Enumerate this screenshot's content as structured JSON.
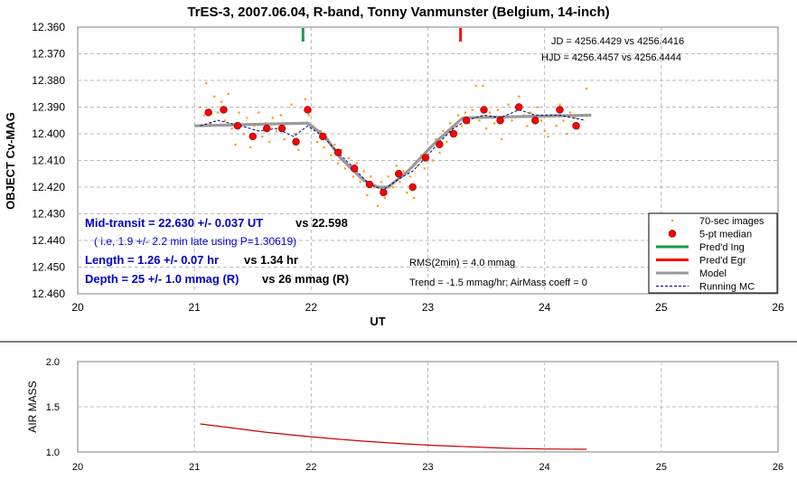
{
  "colors": {
    "raw_points": "#ff9900",
    "median_points": "#ff0000",
    "median_outline": "#990000",
    "ingress": "#1a9a50",
    "egress": "#ff0000",
    "model": "#999999",
    "running_mc": "#000080",
    "airmass_line": "#cc0000",
    "grid": "#b8b8b8",
    "annotation_blue": "#0000cc"
  },
  "chart_data": [
    {
      "type": "scatter",
      "title": "TrES-3, 2007.06.04, R-band, Tonny Vanmunster (Belgium, 14-inch)",
      "xlabel": "UT",
      "ylabel": "OBJECT Cv-MAG",
      "xlim": [
        20,
        26
      ],
      "ylim": [
        12.36,
        12.46
      ],
      "y_inverted": true,
      "grid": true,
      "x_ticks": [
        "20",
        "21",
        "22",
        "23",
        "24",
        "25",
        "26"
      ],
      "y_ticks": [
        "12.360",
        "12.370",
        "12.380",
        "12.390",
        "12.400",
        "12.410",
        "12.420",
        "12.430",
        "12.440",
        "12.450",
        "12.460"
      ],
      "legend_position": "bottom-right",
      "legend": [
        {
          "label": "70-sec images",
          "kind": "raw"
        },
        {
          "label": "5-pt median",
          "kind": "median"
        },
        {
          "label": "Pred'd Ing",
          "kind": "ingress"
        },
        {
          "label": "Pred'd Egr",
          "kind": "egress"
        },
        {
          "label": "Model",
          "kind": "model"
        },
        {
          "label": "Running MC",
          "kind": "running"
        }
      ],
      "annotations": {
        "jd": "JD = 4256.4429 vs 4256.4416",
        "hjd": "HJD = 4256.4457 vs 4256.4444",
        "mid_transit": "Mid-transit = 22.630 +/- 0.037 UT",
        "mid_transit_vs": "vs 22.598",
        "late_note": "( i.e, 1.9 +/- 2.2 min late using P=1.30619)",
        "length": "Length = 1.26 +/- 0.07 hr",
        "length_vs": "vs 1.34 hr",
        "depth": "Depth = 25 +/- 1.0 mmag (R)",
        "depth_vs": "vs 26  mmag (R)",
        "rms": "RMS(2min) = 4.0 mmag",
        "trend": "Trend = -1.5 mmag/hr; AirMass coeff = 0"
      },
      "predicted_ingress": 21.93,
      "predicted_egress": 23.28,
      "median_points": [
        {
          "x": 21.12,
          "y": 12.392
        },
        {
          "x": 21.25,
          "y": 12.391
        },
        {
          "x": 21.37,
          "y": 12.397
        },
        {
          "x": 21.5,
          "y": 12.401
        },
        {
          "x": 21.62,
          "y": 12.398
        },
        {
          "x": 21.75,
          "y": 12.398
        },
        {
          "x": 21.87,
          "y": 12.403
        },
        {
          "x": 21.97,
          "y": 12.391
        },
        {
          "x": 22.1,
          "y": 12.401
        },
        {
          "x": 22.23,
          "y": 12.407
        },
        {
          "x": 22.37,
          "y": 12.413
        },
        {
          "x": 22.5,
          "y": 12.419
        },
        {
          "x": 22.62,
          "y": 12.422
        },
        {
          "x": 22.75,
          "y": 12.415
        },
        {
          "x": 22.87,
          "y": 12.42
        },
        {
          "x": 22.98,
          "y": 12.409
        },
        {
          "x": 23.1,
          "y": 12.404
        },
        {
          "x": 23.22,
          "y": 12.4
        },
        {
          "x": 23.33,
          "y": 12.395
        },
        {
          "x": 23.48,
          "y": 12.391
        },
        {
          "x": 23.62,
          "y": 12.395
        },
        {
          "x": 23.78,
          "y": 12.39
        },
        {
          "x": 23.92,
          "y": 12.395
        },
        {
          "x": 24.13,
          "y": 12.391
        },
        {
          "x": 24.27,
          "y": 12.397
        }
      ],
      "raw_points": [
        {
          "x": 21.05,
          "y": 12.39
        },
        {
          "x": 21.08,
          "y": 12.393
        },
        {
          "x": 21.1,
          "y": 12.381
        },
        {
          "x": 21.14,
          "y": 12.396
        },
        {
          "x": 21.17,
          "y": 12.386
        },
        {
          "x": 21.2,
          "y": 12.392
        },
        {
          "x": 21.23,
          "y": 12.388
        },
        {
          "x": 21.26,
          "y": 12.395
        },
        {
          "x": 21.29,
          "y": 12.385
        },
        {
          "x": 21.32,
          "y": 12.398
        },
        {
          "x": 21.35,
          "y": 12.404
        },
        {
          "x": 21.38,
          "y": 12.392
        },
        {
          "x": 21.42,
          "y": 12.4
        },
        {
          "x": 21.45,
          "y": 12.394
        },
        {
          "x": 21.48,
          "y": 12.405
        },
        {
          "x": 21.51,
          "y": 12.397
        },
        {
          "x": 21.55,
          "y": 12.392
        },
        {
          "x": 21.58,
          "y": 12.401
        },
        {
          "x": 21.61,
          "y": 12.396
        },
        {
          "x": 21.64,
          "y": 12.403
        },
        {
          "x": 21.67,
          "y": 12.394
        },
        {
          "x": 21.7,
          "y": 12.399
        },
        {
          "x": 21.74,
          "y": 12.393
        },
        {
          "x": 21.77,
          "y": 12.402
        },
        {
          "x": 21.8,
          "y": 12.396
        },
        {
          "x": 21.83,
          "y": 12.389
        },
        {
          "x": 21.86,
          "y": 12.4
        },
        {
          "x": 21.89,
          "y": 12.406
        },
        {
          "x": 21.92,
          "y": 12.396
        },
        {
          "x": 21.95,
          "y": 12.387
        },
        {
          "x": 21.98,
          "y": 12.393
        },
        {
          "x": 22.01,
          "y": 12.397
        },
        {
          "x": 22.05,
          "y": 12.403
        },
        {
          "x": 22.08,
          "y": 12.399
        },
        {
          "x": 22.11,
          "y": 12.405
        },
        {
          "x": 22.14,
          "y": 12.402
        },
        {
          "x": 22.17,
          "y": 12.408
        },
        {
          "x": 22.2,
          "y": 12.404
        },
        {
          "x": 22.23,
          "y": 12.411
        },
        {
          "x": 22.26,
          "y": 12.406
        },
        {
          "x": 22.29,
          "y": 12.413
        },
        {
          "x": 22.32,
          "y": 12.409
        },
        {
          "x": 22.36,
          "y": 12.416
        },
        {
          "x": 22.39,
          "y": 12.411
        },
        {
          "x": 22.42,
          "y": 12.418
        },
        {
          "x": 22.45,
          "y": 12.414
        },
        {
          "x": 22.48,
          "y": 12.423
        },
        {
          "x": 22.51,
          "y": 12.416
        },
        {
          "x": 22.54,
          "y": 12.42
        },
        {
          "x": 22.57,
          "y": 12.427
        },
        {
          "x": 22.6,
          "y": 12.418
        },
        {
          "x": 22.63,
          "y": 12.424
        },
        {
          "x": 22.66,
          "y": 12.416
        },
        {
          "x": 22.7,
          "y": 12.42
        },
        {
          "x": 22.73,
          "y": 12.412
        },
        {
          "x": 22.76,
          "y": 12.418
        },
        {
          "x": 22.79,
          "y": 12.414
        },
        {
          "x": 22.82,
          "y": 12.422
        },
        {
          "x": 22.85,
          "y": 12.416
        },
        {
          "x": 22.88,
          "y": 12.424
        },
        {
          "x": 22.91,
          "y": 12.412
        },
        {
          "x": 22.94,
          "y": 12.408
        },
        {
          "x": 22.97,
          "y": 12.413
        },
        {
          "x": 23.01,
          "y": 12.406
        },
        {
          "x": 23.04,
          "y": 12.41
        },
        {
          "x": 23.07,
          "y": 12.402
        },
        {
          "x": 23.1,
          "y": 12.407
        },
        {
          "x": 23.13,
          "y": 12.399
        },
        {
          "x": 23.16,
          "y": 12.403
        },
        {
          "x": 23.19,
          "y": 12.396
        },
        {
          "x": 23.22,
          "y": 12.401
        },
        {
          "x": 23.26,
          "y": 12.393
        },
        {
          "x": 23.29,
          "y": 12.397
        },
        {
          "x": 23.32,
          "y": 12.392
        },
        {
          "x": 23.35,
          "y": 12.396
        },
        {
          "x": 23.38,
          "y": 12.391
        },
        {
          "x": 23.41,
          "y": 12.382
        },
        {
          "x": 23.44,
          "y": 12.395
        },
        {
          "x": 23.47,
          "y": 12.382
        },
        {
          "x": 23.5,
          "y": 12.398
        },
        {
          "x": 23.53,
          "y": 12.392
        },
        {
          "x": 23.57,
          "y": 12.396
        },
        {
          "x": 23.6,
          "y": 12.391
        },
        {
          "x": 23.63,
          "y": 12.402
        },
        {
          "x": 23.66,
          "y": 12.394
        },
        {
          "x": 23.69,
          "y": 12.389
        },
        {
          "x": 23.72,
          "y": 12.395
        },
        {
          "x": 23.75,
          "y": 12.39
        },
        {
          "x": 23.78,
          "y": 12.386
        },
        {
          "x": 23.82,
          "y": 12.393
        },
        {
          "x": 23.85,
          "y": 12.397
        },
        {
          "x": 23.88,
          "y": 12.392
        },
        {
          "x": 23.91,
          "y": 12.396
        },
        {
          "x": 23.94,
          "y": 12.39
        },
        {
          "x": 23.97,
          "y": 12.395
        },
        {
          "x": 24.0,
          "y": 12.399
        },
        {
          "x": 24.03,
          "y": 12.401
        },
        {
          "x": 24.07,
          "y": 12.393
        },
        {
          "x": 24.1,
          "y": 12.397
        },
        {
          "x": 24.13,
          "y": 12.389
        },
        {
          "x": 24.16,
          "y": 12.395
        },
        {
          "x": 24.19,
          "y": 12.4
        },
        {
          "x": 24.22,
          "y": 12.392
        },
        {
          "x": 24.26,
          "y": 12.394
        },
        {
          "x": 24.29,
          "y": 12.398
        },
        {
          "x": 24.32,
          "y": 12.393
        },
        {
          "x": 24.36,
          "y": 12.383
        }
      ],
      "model": [
        {
          "x": 21.0,
          "y": 12.397
        },
        {
          "x": 21.97,
          "y": 12.396
        },
        {
          "x": 22.12,
          "y": 12.401
        },
        {
          "x": 22.25,
          "y": 12.409
        },
        {
          "x": 22.45,
          "y": 12.4175
        },
        {
          "x": 22.57,
          "y": 12.42
        },
        {
          "x": 22.66,
          "y": 12.42
        },
        {
          "x": 22.83,
          "y": 12.414
        },
        {
          "x": 23.07,
          "y": 12.403
        },
        {
          "x": 23.3,
          "y": 12.394
        },
        {
          "x": 24.4,
          "y": 12.393
        }
      ],
      "running_mc": [
        {
          "x": 21.05,
          "y": 12.397
        },
        {
          "x": 21.2,
          "y": 12.395
        },
        {
          "x": 21.4,
          "y": 12.397
        },
        {
          "x": 21.55,
          "y": 12.399
        },
        {
          "x": 21.7,
          "y": 12.398
        },
        {
          "x": 21.85,
          "y": 12.401
        },
        {
          "x": 21.97,
          "y": 12.397
        },
        {
          "x": 22.1,
          "y": 12.401
        },
        {
          "x": 22.23,
          "y": 12.407
        },
        {
          "x": 22.37,
          "y": 12.413
        },
        {
          "x": 22.5,
          "y": 12.419
        },
        {
          "x": 22.62,
          "y": 12.421
        },
        {
          "x": 22.75,
          "y": 12.417
        },
        {
          "x": 22.87,
          "y": 12.414
        },
        {
          "x": 22.98,
          "y": 12.409
        },
        {
          "x": 23.1,
          "y": 12.403
        },
        {
          "x": 23.22,
          "y": 12.398
        },
        {
          "x": 23.33,
          "y": 12.395
        },
        {
          "x": 23.48,
          "y": 12.393
        },
        {
          "x": 23.62,
          "y": 12.394
        },
        {
          "x": 23.78,
          "y": 12.391
        },
        {
          "x": 23.92,
          "y": 12.393
        },
        {
          "x": 24.13,
          "y": 12.393
        },
        {
          "x": 24.35,
          "y": 12.395
        }
      ]
    },
    {
      "type": "line",
      "title": "",
      "xlabel": "",
      "ylabel": "AIR MASS",
      "xlim": [
        20,
        26
      ],
      "ylim": [
        1.0,
        2.0
      ],
      "grid": true,
      "x_ticks": [
        "20",
        "21",
        "22",
        "23",
        "24",
        "25",
        "26"
      ],
      "y_ticks": [
        "1.0",
        "1.5",
        "2.0"
      ],
      "series": [
        {
          "x": [
            21.05,
            21.3,
            21.6,
            21.9,
            22.2,
            22.5,
            22.8,
            23.1,
            23.4,
            23.7,
            24.0,
            24.36
          ],
          "values": [
            1.31,
            1.27,
            1.22,
            1.18,
            1.145,
            1.115,
            1.09,
            1.07,
            1.055,
            1.04,
            1.033,
            1.03
          ]
        }
      ]
    }
  ]
}
